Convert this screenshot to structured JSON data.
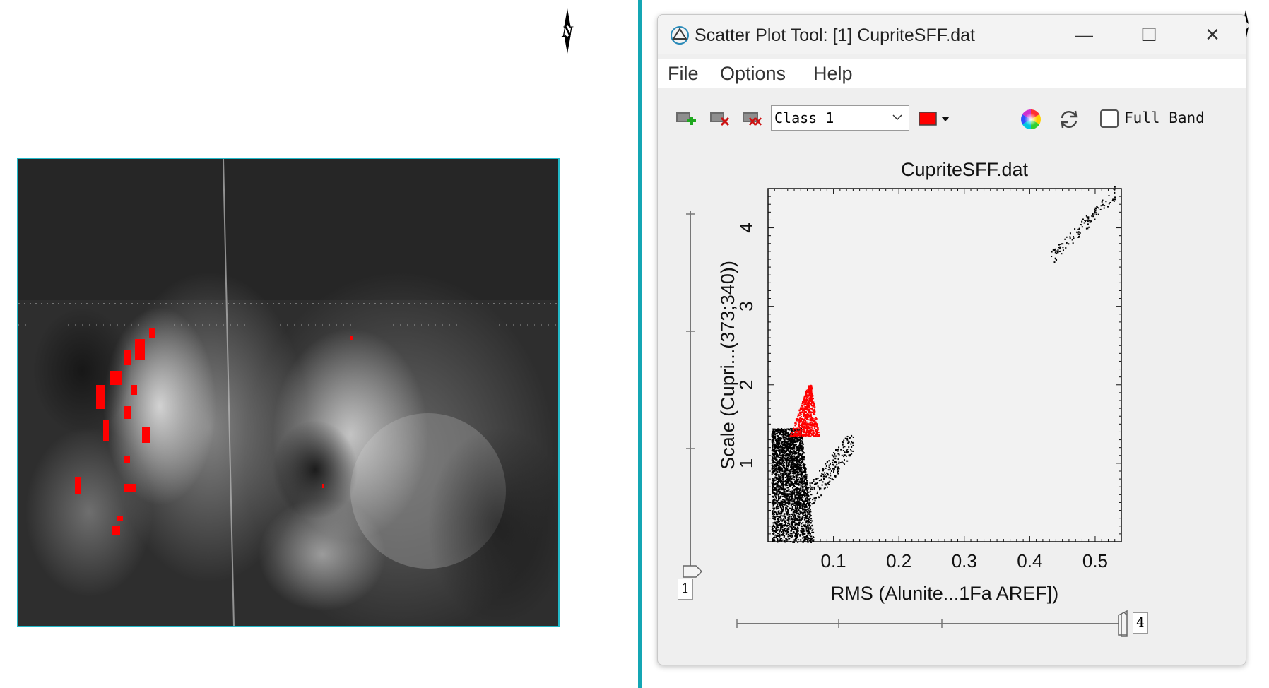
{
  "window": {
    "title": "Scatter Plot Tool: [1] CupriteSFF.dat",
    "controls": {
      "minimize": "—",
      "maximize": "☐",
      "close": "✕"
    }
  },
  "menu": {
    "items": [
      "File",
      "Options",
      "Help"
    ]
  },
  "toolbar": {
    "class_select": "Class 1",
    "class_color": "#ff0000",
    "full_band_label": "Full Band",
    "full_band_checked": false,
    "icons": [
      "add-roi-icon",
      "delete-roi-icon",
      "delete-all-rois-icon",
      "color-wheel-icon",
      "refresh-icon"
    ]
  },
  "sliders": {
    "y_value": "1",
    "x_value": "4"
  },
  "map": {
    "north_label": "N",
    "frame_color": "#22b8c8"
  },
  "chart_data": {
    "type": "scatter",
    "title": "CupriteSFF.dat",
    "xlabel": "RMS (Alunite...1Fa AREF])",
    "ylabel": "Scale (Cupri...(373;340))",
    "xlim": [
      0.0,
      0.54
    ],
    "ylim": [
      0.0,
      4.5
    ],
    "xticks": [
      0.1,
      0.2,
      0.3,
      0.4,
      0.5
    ],
    "yticks": [
      1,
      2,
      3,
      4
    ],
    "xtick_labels": [
      "0.1",
      "0.2",
      "0.3",
      "0.4",
      "0.5"
    ],
    "ytick_labels": [
      "1",
      "2",
      "3",
      "4"
    ],
    "grid": false,
    "series": [
      {
        "name": "Class 1",
        "color": "#ff0000",
        "cluster": {
          "x_range": [
            0.02,
            0.07
          ],
          "y_range": [
            1.3,
            2.0
          ]
        }
      },
      {
        "color": "#000000",
        "cluster": {
          "x_range": [
            0.0,
            0.13
          ],
          "y_range": [
            0.0,
            1.45
          ]
        },
        "outliers": {
          "x_range": [
            0.43,
            0.53
          ],
          "y_range": [
            3.6,
            4.45
          ]
        }
      }
    ]
  }
}
